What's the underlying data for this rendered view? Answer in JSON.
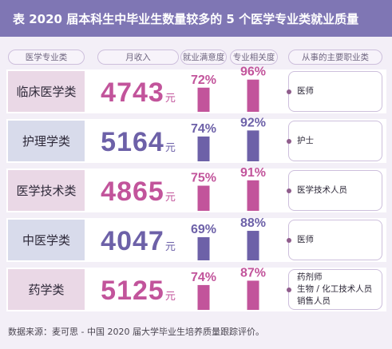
{
  "title": "表  2020 届本科生中毕业生数量较多的 5 个医学专业类就业质量",
  "headers": {
    "major": "医学专业类",
    "salary": "月收入",
    "satisfaction": "就业满意度",
    "relevance": "专业相关度",
    "occupation": "从事的主要职业类"
  },
  "salary_unit": "元",
  "rows": [
    {
      "major": "临床医学类",
      "salary": "4743",
      "satisfaction": "72%",
      "relevance": "96%",
      "occupations": [
        "医师"
      ]
    },
    {
      "major": "护理学类",
      "salary": "5164",
      "satisfaction": "74%",
      "relevance": "92%",
      "occupations": [
        "护士"
      ]
    },
    {
      "major": "医学技术类",
      "salary": "4865",
      "satisfaction": "75%",
      "relevance": "91%",
      "occupations": [
        "医学技术人员"
      ]
    },
    {
      "major": "中医学类",
      "salary": "4047",
      "satisfaction": "69%",
      "relevance": "88%",
      "occupations": [
        "医师"
      ]
    },
    {
      "major": "药学类",
      "salary": "5125",
      "satisfaction": "74%",
      "relevance": "87%",
      "occupations": [
        "药剂师",
        "生物 / 化工技术人员",
        "销售人员"
      ]
    }
  ],
  "source": "数据来源：麦可思 - 中国 2020 届大学毕业生培养质量跟踪评价。",
  "colors": {
    "title_bg": "#7f76b4",
    "pink": "#c2549b",
    "blue": "#6d61a8",
    "pink_light": "#ead8e6",
    "blue_light": "#d8dbeb"
  },
  "chart_data": {
    "type": "bar",
    "categories": [
      "临床医学类",
      "护理学类",
      "医学技术类",
      "中医学类",
      "药学类"
    ],
    "series": [
      {
        "name": "月收入",
        "values": [
          4743,
          5164,
          4865,
          4047,
          5125
        ]
      },
      {
        "name": "就业满意度",
        "values": [
          72,
          74,
          75,
          69,
          74
        ]
      },
      {
        "name": "专业相关度",
        "values": [
          96,
          92,
          91,
          88,
          87
        ]
      }
    ],
    "title": "表  2020 届本科生中毕业生数量较多的 5 个医学专业类就业质量"
  }
}
